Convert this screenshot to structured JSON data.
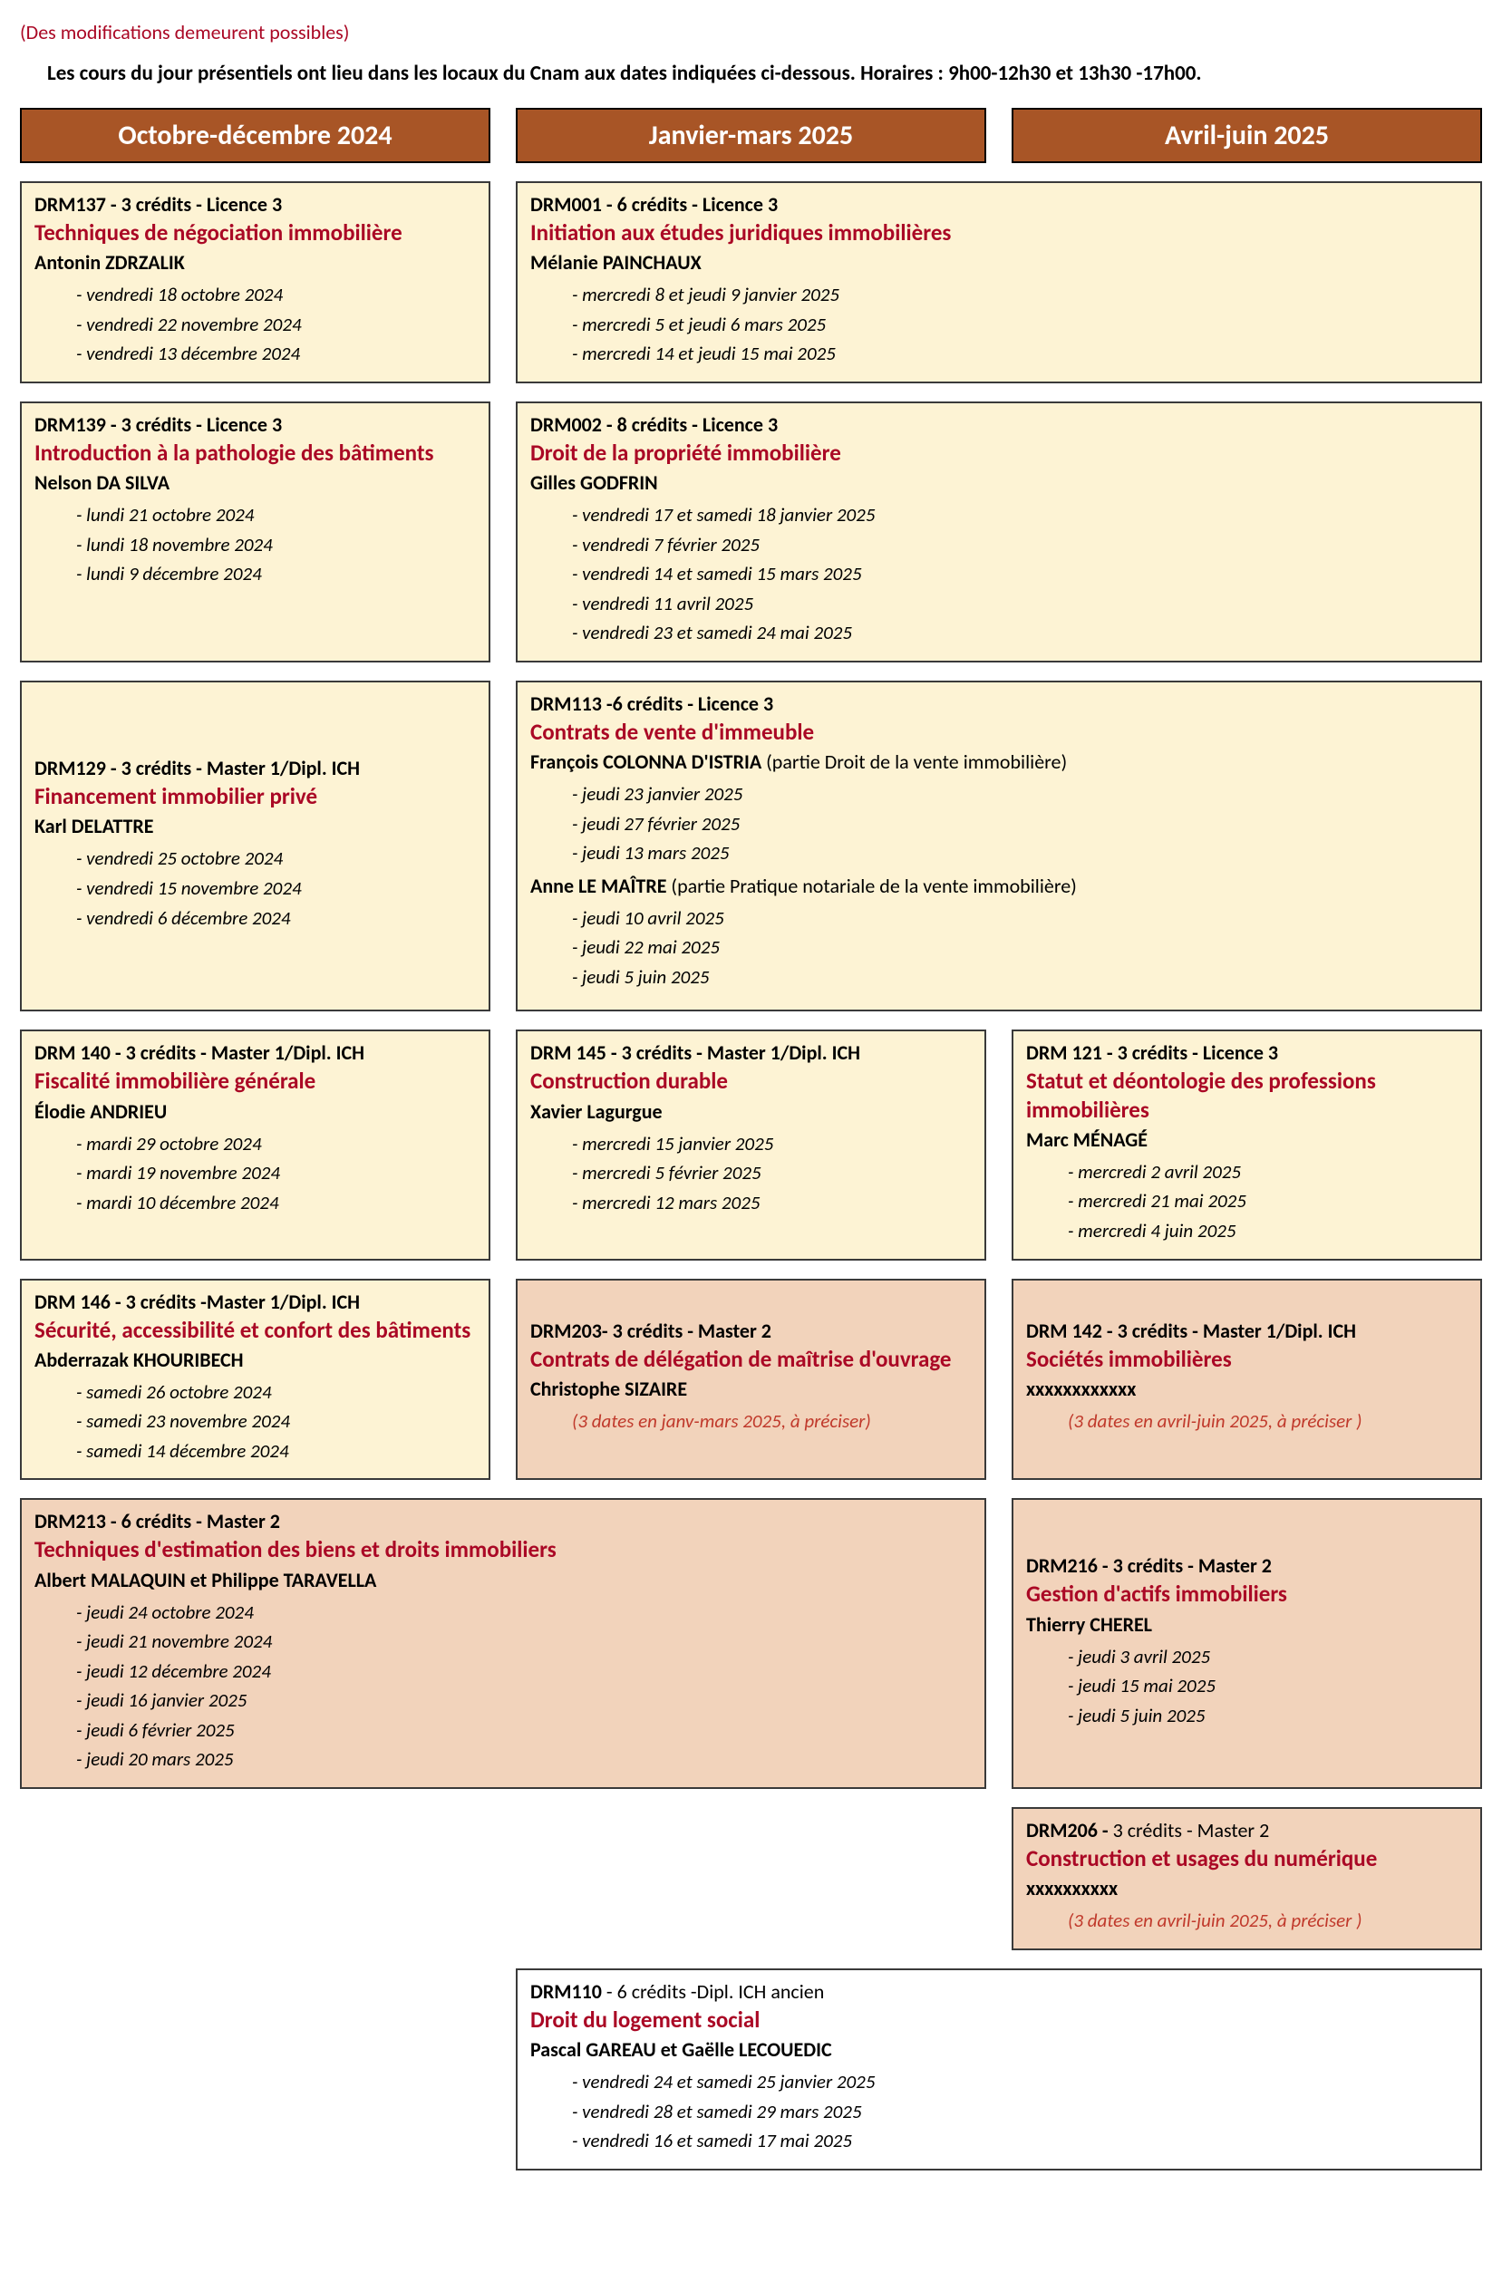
{
  "meta": {
    "note": "(Des modifications demeurent possibles)",
    "intro": "Les cours du jour présentiels ont lieu dans les locaux du Cnam aux dates indiquées ci-dessous. Horaires : 9h00-12h30 et 13h30 -17h00."
  },
  "headers": {
    "h1": "Octobre-décembre 2024",
    "h2": "Janvier-mars 2025",
    "h3": "Avril-juin 2025"
  },
  "colors": {
    "header_bg": "#a85526",
    "header_fg": "#ffffff",
    "title_color": "#aa0825",
    "yellow": "#fdf3d4",
    "peach": "#f2d3bb",
    "white": "#ffffff",
    "red_italic": "#c0392b",
    "border": "#3a3a3a"
  },
  "fonts": {
    "body_family": "Calibri, Arial, sans-serif",
    "code_size_pt": 16,
    "title_size_pt": 18,
    "header_size_pt": 22
  },
  "c": {
    "drm137": {
      "code": "DRM137  - 3 crédits - Licence 3",
      "title": "Techniques de négociation immobilière",
      "instr": "Antonin ZDRZALIK",
      "d1": "- vendredi 18 octobre 2024",
      "d2": "- vendredi 22 novembre 2024",
      "d3": "- vendredi 13 décembre 2024"
    },
    "drm001": {
      "code": "DRM001 - 6 crédits -  Licence 3",
      "title": "Initiation aux études juridiques immobilières",
      "instr": "Mélanie PAINCHAUX",
      "d1": "- mercredi 8 et jeudi 9 janvier 2025",
      "d2": "- mercredi 5 et jeudi 6 mars 2025",
      "d3": "- mercredi 14 et jeudi 15 mai 2025"
    },
    "drm139": {
      "code": "DRM139  - 3 crédits -  Licence 3",
      "title": "Introduction à la pathologie des bâtiments",
      "instr": "Nelson DA SILVA",
      "d1": "- lundi 21 octobre 2024",
      "d2": "- lundi 18 novembre 2024",
      "d3": "- lundi 9 décembre 2024"
    },
    "drm002": {
      "code": "DRM002 - 8 crédits  -  Licence 3",
      "title": "Droit de la propriété immobilière",
      "instr": "Gilles GODFRIN",
      "d1": "- vendredi 17 et samedi 18 janvier 2025",
      "d2": "- vendredi 7 février 2025",
      "d3": "- vendredi 14 et samedi 15 mars 2025",
      "d4": "- vendredi 11 avril 2025",
      "d5": "- vendredi 23 et samedi 24 mai 2025"
    },
    "drm129": {
      "code": "DRM129  - 3 crédits - Master 1/Dipl. ICH",
      "title": "Financement immobilier privé",
      "instr": "Karl DELATTRE",
      "d1": "- vendredi 25 octobre 2024",
      "d2": "- vendredi 15 novembre 2024",
      "d3": "- vendredi 6 décembre 2024"
    },
    "drm113": {
      "code": "DRM113 -6 crédits -  Licence 3",
      "title": "Contrats de vente d'immeuble",
      "instr1_name": "François COLONNA D'ISTRIA",
      "instr1_note": " (partie Droit de la vente immobilière)",
      "d1": "- jeudi 23 janvier 2025",
      "d2": "- jeudi 27 février 2025",
      "d3": "- jeudi 13 mars 2025",
      "instr2_name": "Anne LE MAÎTRE",
      "instr2_note": " (partie Pratique notariale de la vente immobilière)",
      "d4": "- jeudi 10 avril 2025",
      "d5": "- jeudi 22 mai 2025",
      "d6": "- jeudi 5 juin 2025"
    },
    "drm140": {
      "code": "DRM 140 - 3 crédits -  Master 1/Dipl. ICH",
      "title": "Fiscalité immobilière générale",
      "instr": "Élodie ANDRIEU",
      "d1": "- mardi 29 octobre 2024",
      "d2": "- mardi 19 novembre 2024",
      "d3": "- mardi 10 décembre 2024"
    },
    "drm145": {
      "code": "DRM 145 - 3 crédits -  Master 1/Dipl. ICH",
      "title": "Construction durable",
      "instr": "Xavier Lagurgue",
      "d1": "- mercredi  15 janvier 2025",
      "d2": "- mercredi 5 février 2025",
      "d3": "- mercredi 12 mars 2025"
    },
    "drm121": {
      "code": "DRM 121 - 3 crédits -  Licence 3",
      "title": "Statut et déontologie des professions immobilières",
      "instr": "Marc MÉNAGÉ",
      "d1": "- mercredi 2 avril 2025",
      "d2": "- mercredi 21 mai 2025",
      "d3": "- mercredi 4 juin 2025"
    },
    "drm146": {
      "code": "DRM 146  - 3 crédits -Master 1/Dipl. ICH",
      "title": "Sécurité, accessibilité et confort des bâtiments",
      "instr": "Abderrazak KHOURIBECH",
      "d1": "- samedi 26 octobre 2024",
      "d2": "- samedi 23 novembre 2024",
      "d3": "- samedi 14 décembre 2024"
    },
    "drm203": {
      "code": "DRM203- 3 crédits - Master 2",
      "title": "Contrats de délégation de maîtrise d'ouvrage",
      "instr": "Christophe SIZAIRE",
      "d1": "(3 dates en janv-mars 2025, à préciser)"
    },
    "drm142": {
      "code": "DRM 142  - 3 crédits - Master 1/Dipl. ICH",
      "title": "Sociétés immobilières",
      "instr": "xxxxxxxxxxxx",
      "d1": "(3 dates en avril-juin 2025, à préciser )"
    },
    "drm213": {
      "code": "DRM213 - 6 crédits - Master 2",
      "title": "Techniques d'estimation des biens et droits immobiliers",
      "instr": "Albert MALAQUIN et Philippe TARAVELLA",
      "d1": "- jeudi 24 octobre 2024",
      "d2": "- jeudi 21 novembre 2024",
      "d3": "- jeudi 12 décembre 2024",
      "d4": "- jeudi 16 janvier 2025",
      "d5": "- jeudi 6 février 2025",
      "d6": "- jeudi 20 mars 2025"
    },
    "drm216": {
      "code": "DRM216 - 3 crédits - Master 2",
      "title": "Gestion d'actifs immobiliers",
      "instr": "Thierry CHEREL",
      "d1": "- jeudi 3 avril 2025",
      "d2": "- jeudi 15 mai 2025",
      "d3": "- jeudi 5 juin 2025"
    },
    "drm206": {
      "code_strong": "DRM206 -",
      "code_rest": " 3 crédits - Master 2",
      "title": "Construction et usages du numérique",
      "instr": "xxxxxxxxxx",
      "d1": "(3 dates en avril-juin 2025, à préciser )"
    },
    "drm110": {
      "code_strong": "DRM110",
      "code_rest": " - 6 crédits -Dipl. ICH ancien",
      "title": "Droit du logement social",
      "instr": "Pascal GAREAU et Gaëlle LECOUEDIC",
      "d1": "- vendredi 24 et samedi 25 janvier 2025",
      "d2": "- vendredi 28 et samedi 29 mars 2025",
      "d3": "- vendredi 16 et samedi 17 mai 2025"
    }
  }
}
